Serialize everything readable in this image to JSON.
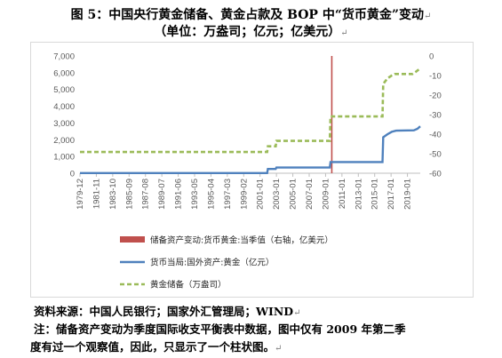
{
  "title": "图 5：中国央行黄金储备、黄金占款及 BOP 中“货币黄金”变动",
  "subtitle": "（单位：万盎司；亿元；亿美元）",
  "return_mark": "↵",
  "source_note": "资料来源：中国人民银行；国家外汇管理局；WIND",
  "note_line1": "注：储备资产变动为季度国际收支平衡表中数据，图中仅有 2009 年第二季",
  "note_line2": "度有过一个观察值，因此，只显示了一个柱状图。",
  "chart_data": {
    "type": "line",
    "x_ticks": [
      "1979-12",
      "1981-11",
      "1983-10",
      "1985-09",
      "1987-08",
      "1989-07",
      "1991-06",
      "1993-05",
      "1995-04",
      "1997-03",
      "1999-02",
      "2001-01",
      "2002-12",
      "2004-11",
      "2006-10",
      "2008-09",
      "2010-08",
      "2012-07",
      "2014-06",
      "2016-05",
      "2018-04"
    ],
    "x_tick_labels": [
      "1979-12",
      "1981-11",
      "1983-10",
      "1985-09",
      "1987-08",
      "1989-07",
      "1991-06",
      "1993-05",
      "1995-04",
      "1997-03",
      "1999-02",
      "2001-01",
      "2003-01",
      "2005-01",
      "2007-01",
      "2009-01",
      "2011-01",
      "2013-01",
      "2015-01",
      "2017-01",
      "2019-01"
    ],
    "x_range": [
      "1979-12",
      "2019-10"
    ],
    "y_left": {
      "min": 0,
      "max": 7000,
      "ticks": [
        0,
        1000,
        2000,
        3000,
        4000,
        5000,
        6000,
        7000
      ],
      "tick_labels": [
        "0",
        "1,000",
        "2,000",
        "3,000",
        "4,000",
        "5,000",
        "6,000",
        "7,000"
      ]
    },
    "y_right": {
      "min": -60,
      "max": 0,
      "ticks": [
        0,
        -10,
        -20,
        -30,
        -40,
        -50,
        -60
      ],
      "tick_labels": [
        "0",
        "-10",
        "-20",
        "-30",
        "-40",
        "-50",
        "-60"
      ]
    },
    "grid": false,
    "legend_position": "bottom",
    "series": [
      {
        "name": "储备资产变动:货币黄金:当季值（右轴，亿美元）",
        "type": "bar",
        "axis": "right",
        "color": "#c0504d",
        "points": [
          {
            "x": "2009-06",
            "y": -60
          }
        ]
      },
      {
        "name": "货币当局:国外资产:黄金（亿元）",
        "type": "line",
        "axis": "left",
        "color": "#4f81bd",
        "dash": "solid",
        "points": [
          {
            "x": "1979-12",
            "y": 10
          },
          {
            "x": "2001-11",
            "y": 10
          },
          {
            "x": "2001-12",
            "y": 256
          },
          {
            "x": "2002-11",
            "y": 256
          },
          {
            "x": "2002-12",
            "y": 337
          },
          {
            "x": "2009-03",
            "y": 337
          },
          {
            "x": "2009-04",
            "y": 670
          },
          {
            "x": "2015-05",
            "y": 670
          },
          {
            "x": "2015-06",
            "y": 2150
          },
          {
            "x": "2015-12",
            "y": 2330
          },
          {
            "x": "2016-06",
            "y": 2470
          },
          {
            "x": "2016-12",
            "y": 2540
          },
          {
            "x": "2019-01",
            "y": 2560
          },
          {
            "x": "2019-06",
            "y": 2650
          },
          {
            "x": "2019-10",
            "y": 2800
          }
        ]
      },
      {
        "name": "黄金储备（万盎司）",
        "type": "line",
        "axis": "left",
        "color": "#9bbb59",
        "dash": "dashed",
        "points": [
          {
            "x": "1979-12",
            "y": 1267
          },
          {
            "x": "2001-11",
            "y": 1267
          },
          {
            "x": "2001-12",
            "y": 1608
          },
          {
            "x": "2002-11",
            "y": 1608
          },
          {
            "x": "2002-12",
            "y": 1929
          },
          {
            "x": "2009-03",
            "y": 1929
          },
          {
            "x": "2009-04",
            "y": 3389
          },
          {
            "x": "2015-05",
            "y": 3389
          },
          {
            "x": "2015-06",
            "y": 5332
          },
          {
            "x": "2015-12",
            "y": 5666
          },
          {
            "x": "2016-06",
            "y": 5832
          },
          {
            "x": "2016-10",
            "y": 5924
          },
          {
            "x": "2018-11",
            "y": 5924
          },
          {
            "x": "2019-04",
            "y": 6062
          },
          {
            "x": "2019-10",
            "y": 6264
          }
        ]
      }
    ]
  }
}
